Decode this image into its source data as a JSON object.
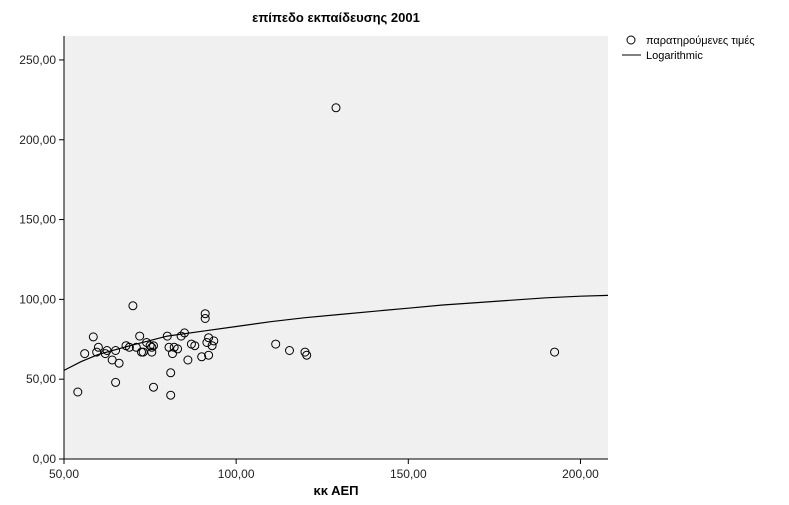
{
  "chart_data": {
    "type": "scatter",
    "title": "επίπεδο εκπαίδευσης 2001",
    "xlabel": "κκ ΑΕΠ",
    "ylabel": "",
    "xlim": [
      50,
      208
    ],
    "ylim": [
      0,
      265
    ],
    "x_ticks": [
      {
        "value": 50,
        "label": "50,00"
      },
      {
        "value": 100,
        "label": "100,00"
      },
      {
        "value": 150,
        "label": "150,00"
      },
      {
        "value": 200,
        "label": "200,00"
      }
    ],
    "y_ticks": [
      {
        "value": 0,
        "label": "0,00"
      },
      {
        "value": 50,
        "label": "50,00"
      },
      {
        "value": 100,
        "label": "100,00"
      },
      {
        "value": 150,
        "label": "150,00"
      },
      {
        "value": 200,
        "label": "200,00"
      },
      {
        "value": 250,
        "label": "250,00"
      }
    ],
    "grid": false,
    "legend_position": "top-right",
    "series": [
      {
        "name": "παρατηρούμενες τιμές",
        "kind": "points",
        "marker": "open-circle",
        "points": [
          [
            54,
            42
          ],
          [
            56,
            66
          ],
          [
            58.5,
            76.5
          ],
          [
            59.5,
            67
          ],
          [
            60,
            70
          ],
          [
            62,
            66
          ],
          [
            62.5,
            68
          ],
          [
            64,
            62
          ],
          [
            65,
            68
          ],
          [
            65,
            48
          ],
          [
            66,
            60
          ],
          [
            68,
            71
          ],
          [
            69,
            70
          ],
          [
            70,
            96
          ],
          [
            71,
            70
          ],
          [
            72,
            77
          ],
          [
            72.5,
            67
          ],
          [
            73,
            67
          ],
          [
            74,
            73
          ],
          [
            75,
            71
          ],
          [
            75.5,
            67
          ],
          [
            75.5,
            70
          ],
          [
            76,
            45
          ],
          [
            76,
            71
          ],
          [
            80,
            77
          ],
          [
            80.5,
            70
          ],
          [
            81,
            40
          ],
          [
            81,
            54
          ],
          [
            81.5,
            66
          ],
          [
            82,
            70
          ],
          [
            83,
            69
          ],
          [
            84,
            77
          ],
          [
            85,
            79
          ],
          [
            86,
            62
          ],
          [
            87,
            72
          ],
          [
            88,
            71
          ],
          [
            90,
            64
          ],
          [
            91,
            91
          ],
          [
            91,
            88
          ],
          [
            91.5,
            73
          ],
          [
            92,
            65
          ],
          [
            92,
            76
          ],
          [
            93,
            71
          ],
          [
            93.5,
            74
          ],
          [
            111.5,
            72
          ],
          [
            115.5,
            68
          ],
          [
            120,
            67
          ],
          [
            120.5,
            65
          ],
          [
            129,
            220
          ],
          [
            192.5,
            67
          ]
        ]
      },
      {
        "name": "Logarithmic",
        "kind": "curve",
        "color": "#000000",
        "points": [
          [
            50,
            55.5
          ],
          [
            55,
            61
          ],
          [
            60,
            65.5
          ],
          [
            70,
            71.5
          ],
          [
            80,
            77
          ],
          [
            90,
            80
          ],
          [
            100,
            83
          ],
          [
            110,
            86
          ],
          [
            120,
            88.5
          ],
          [
            130,
            90.5
          ],
          [
            140,
            92.5
          ],
          [
            150,
            94.5
          ],
          [
            160,
            96.5
          ],
          [
            170,
            98
          ],
          [
            180,
            99.5
          ],
          [
            190,
            101
          ],
          [
            200,
            102
          ],
          [
            208,
            102.5
          ]
        ]
      }
    ],
    "colors": {
      "plot_background": "#f0f0f0",
      "axis": "#000000",
      "marker_stroke": "#000000"
    }
  }
}
